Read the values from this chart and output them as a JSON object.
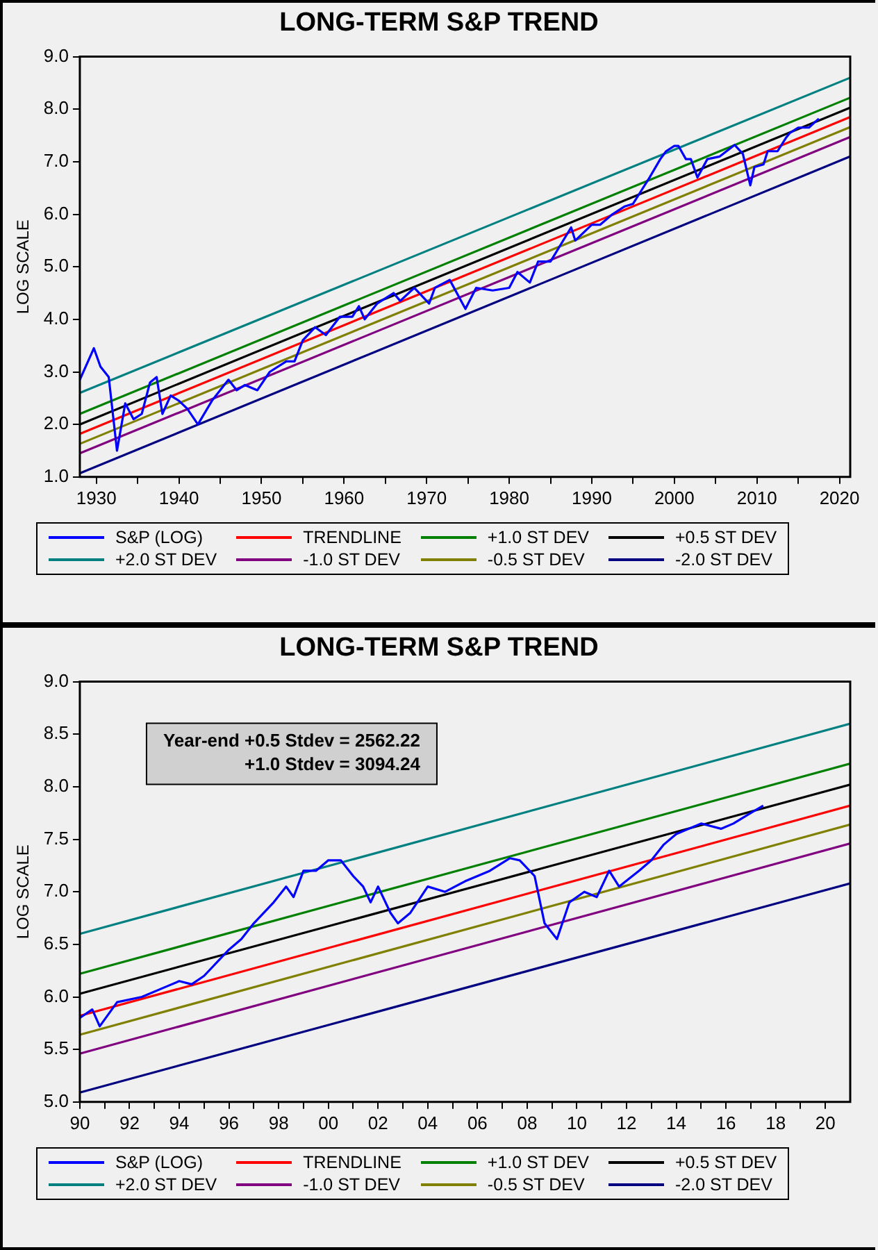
{
  "chart_data": [
    {
      "type": "line",
      "title": "LONG-TERM S&P TREND",
      "ylabel": "LOG SCALE",
      "xlim": [
        1928,
        2021.3
      ],
      "xticks": [
        1930,
        {
          "value": 1935,
          "label": null
        },
        1940,
        {
          "value": 1945,
          "label": null
        },
        1950,
        {
          "value": 1955,
          "label": null
        },
        1960,
        {
          "value": 1965,
          "label": null
        },
        1970,
        {
          "value": 1975,
          "label": null
        },
        1980,
        {
          "value": 1985,
          "label": null
        },
        1990,
        {
          "value": 1995,
          "label": null
        },
        2000,
        {
          "value": 2005,
          "label": null
        },
        2010,
        {
          "value": 2015,
          "label": null
        },
        2020
      ],
      "ylim": [
        1,
        9
      ],
      "yticks": [
        {
          "value": 1,
          "label": "1.0"
        },
        {
          "value": 2,
          "label": "2.0"
        },
        {
          "value": 3,
          "label": "3.0"
        },
        {
          "value": 4,
          "label": "4.0"
        },
        {
          "value": 5,
          "label": "5.0"
        },
        {
          "value": 6,
          "label": "6.0"
        },
        {
          "value": 7,
          "label": "7.0"
        },
        {
          "value": 8,
          "label": "8.0"
        },
        {
          "value": 9,
          "label": "9.0"
        }
      ],
      "grid": false,
      "legend": "bottom",
      "marker": "none",
      "series": [
        {
          "name": "S&P (LOG)",
          "color": "#0000ff",
          "x": [
            1928,
            1929.7,
            1930.5,
            1931.5,
            1932.5,
            1933.5,
            1934.5,
            1935.5,
            1936.5,
            1937.3,
            1938,
            1939,
            1940,
            1941,
            1942.3,
            1944,
            1946,
            1947,
            1948,
            1949.5,
            1951,
            1953,
            1954,
            1955,
            1956.5,
            1957.8,
            1959.5,
            1961,
            1961.8,
            1962.5,
            1964,
            1966,
            1966.8,
            1968.5,
            1970.3,
            1971,
            1972.8,
            1974.7,
            1976,
            1978,
            1980,
            1981,
            1982.5,
            1983.5,
            1985,
            1987.5,
            1988,
            1990,
            1991,
            1992.5,
            1994,
            1995,
            1996,
            1997,
            1998.3,
            1999,
            2000,
            2000.5,
            2001.4,
            2002,
            2002.8,
            2004,
            2005.5,
            2007.3,
            2008.3,
            2009.2,
            2009.7,
            2010.8,
            2011.3,
            2012.5,
            2013.5,
            2014,
            2015,
            2016.3,
            2017,
            2017.5
          ],
          "values": [
            2.85,
            3.45,
            3.1,
            2.9,
            1.5,
            2.4,
            2.1,
            2.2,
            2.8,
            2.9,
            2.2,
            2.55,
            2.45,
            2.3,
            2.0,
            2.45,
            2.85,
            2.65,
            2.75,
            2.65,
            3.0,
            3.2,
            3.2,
            3.6,
            3.85,
            3.7,
            4.05,
            4.05,
            4.25,
            4.0,
            4.3,
            4.5,
            4.35,
            4.6,
            4.3,
            4.6,
            4.75,
            4.2,
            4.6,
            4.55,
            4.6,
            4.9,
            4.7,
            5.1,
            5.1,
            5.75,
            5.5,
            5.8,
            5.8,
            6.0,
            6.15,
            6.2,
            6.45,
            6.7,
            7.05,
            7.2,
            7.3,
            7.3,
            7.05,
            7.05,
            6.7,
            7.05,
            7.1,
            7.32,
            7.15,
            6.55,
            6.9,
            6.95,
            7.2,
            7.2,
            7.45,
            7.55,
            7.65,
            7.65,
            7.75,
            7.82
          ]
        },
        {
          "name": "TRENDLINE",
          "color": "#ff0000",
          "x": [
            1928,
            2021.3
          ],
          "values": [
            1.82,
            7.85
          ]
        },
        {
          "name": "+1.0 ST DEV",
          "color": "#008000",
          "x": [
            1928,
            2021.3
          ],
          "values": [
            2.2,
            8.22
          ]
        },
        {
          "name": "+0.5 ST DEV",
          "color": "#000000",
          "x": [
            1928,
            2021.3
          ],
          "values": [
            2.0,
            8.03
          ]
        },
        {
          "name": "+2.0 ST DEV",
          "color": "#008080",
          "x": [
            1928,
            2021.3
          ],
          "values": [
            2.6,
            8.6
          ]
        },
        {
          "name": "-1.0 ST DEV",
          "color": "#800080",
          "x": [
            1928,
            2021.3
          ],
          "values": [
            1.45,
            7.47
          ]
        },
        {
          "name": "-0.5 ST DEV",
          "color": "#808000",
          "x": [
            1928,
            2021.3
          ],
          "values": [
            1.63,
            7.66
          ]
        },
        {
          "name": "-2.0 ST DEV",
          "color": "#000080",
          "x": [
            1928,
            2021.3
          ],
          "values": [
            1.07,
            7.1
          ]
        }
      ]
    },
    {
      "type": "line",
      "title": "LONG-TERM S&P TREND",
      "ylabel": "LOG SCALE",
      "xlim": [
        1990,
        2021
      ],
      "xticks": [
        {
          "value": 1990,
          "label": "90"
        },
        {
          "value": 1991,
          "label": null
        },
        {
          "value": 1992,
          "label": "92"
        },
        {
          "value": 1993,
          "label": null
        },
        {
          "value": 1994,
          "label": "94"
        },
        {
          "value": 1995,
          "label": null
        },
        {
          "value": 1996,
          "label": "96"
        },
        {
          "value": 1997,
          "label": null
        },
        {
          "value": 1998,
          "label": "98"
        },
        {
          "value": 1999,
          "label": null
        },
        {
          "value": 2000,
          "label": "00"
        },
        {
          "value": 2001,
          "label": null
        },
        {
          "value": 2002,
          "label": "02"
        },
        {
          "value": 2003,
          "label": null
        },
        {
          "value": 2004,
          "label": "04"
        },
        {
          "value": 2005,
          "label": null
        },
        {
          "value": 2006,
          "label": "06"
        },
        {
          "value": 2007,
          "label": null
        },
        {
          "value": 2008,
          "label": "08"
        },
        {
          "value": 2009,
          "label": null
        },
        {
          "value": 2010,
          "label": "10"
        },
        {
          "value": 2011,
          "label": null
        },
        {
          "value": 2012,
          "label": "12"
        },
        {
          "value": 2013,
          "label": null
        },
        {
          "value": 2014,
          "label": "14"
        },
        {
          "value": 2015,
          "label": null
        },
        {
          "value": 2016,
          "label": "16"
        },
        {
          "value": 2017,
          "label": null
        },
        {
          "value": 2018,
          "label": "18"
        },
        {
          "value": 2019,
          "label": null
        },
        {
          "value": 2020,
          "label": "20"
        }
      ],
      "ylim": [
        5,
        9
      ],
      "yticks": [
        {
          "value": 5,
          "label": "5.0"
        },
        5.5,
        {
          "value": 6,
          "label": "6.0"
        },
        6.5,
        {
          "value": 7,
          "label": "7.0"
        },
        7.5,
        {
          "value": 8,
          "label": "8.0"
        },
        8.5,
        {
          "value": 9,
          "label": "9.0"
        }
      ],
      "grid": false,
      "legend": "bottom",
      "marker": "none",
      "annotations": [
        "Year-end +0.5 Stdev = 2562.22",
        "+1.0 Stdev = 3094.24"
      ],
      "series": [
        {
          "name": "S&P (LOG)",
          "color": "#0000ff",
          "x": [
            1990,
            1990.5,
            1990.8,
            1991.5,
            1992.5,
            1993.5,
            1994,
            1994.5,
            1995,
            1996,
            1996.5,
            1997,
            1997.8,
            1998.3,
            1998.6,
            1999,
            1999.5,
            2000,
            2000.5,
            2001,
            2001.4,
            2001.7,
            2002,
            2002.5,
            2002.8,
            2003.3,
            2004,
            2004.7,
            2005.5,
            2006.5,
            2007.3,
            2007.7,
            2008.3,
            2008.7,
            2009.2,
            2009.7,
            2010.3,
            2010.8,
            2011.3,
            2011.7,
            2012.5,
            2013,
            2013.5,
            2014,
            2015,
            2015.8,
            2016.3,
            2017,
            2017.5
          ],
          "values": [
            5.8,
            5.88,
            5.72,
            5.95,
            6.0,
            6.1,
            6.15,
            6.12,
            6.2,
            6.45,
            6.55,
            6.7,
            6.9,
            7.05,
            6.95,
            7.2,
            7.2,
            7.3,
            7.3,
            7.15,
            7.05,
            6.9,
            7.05,
            6.8,
            6.7,
            6.8,
            7.05,
            7.0,
            7.1,
            7.2,
            7.32,
            7.3,
            7.15,
            6.7,
            6.55,
            6.9,
            7.0,
            6.95,
            7.2,
            7.05,
            7.2,
            7.3,
            7.45,
            7.55,
            7.65,
            7.6,
            7.65,
            7.75,
            7.82
          ]
        },
        {
          "name": "TRENDLINE",
          "color": "#ff0000",
          "x": [
            1990,
            2021
          ],
          "values": [
            5.82,
            7.82
          ]
        },
        {
          "name": "+1.0 ST DEV",
          "color": "#008000",
          "x": [
            1990,
            2021
          ],
          "values": [
            6.22,
            8.22
          ]
        },
        {
          "name": "+0.5 ST DEV",
          "color": "#000000",
          "x": [
            1990,
            2021
          ],
          "values": [
            6.03,
            8.02
          ]
        },
        {
          "name": "+2.0 ST DEV",
          "color": "#008080",
          "x": [
            1990,
            2021
          ],
          "values": [
            6.6,
            8.6
          ]
        },
        {
          "name": "-1.0 ST DEV",
          "color": "#800080",
          "x": [
            1990,
            2021
          ],
          "values": [
            5.46,
            7.46
          ]
        },
        {
          "name": "-0.5 ST DEV",
          "color": "#808000",
          "x": [
            1990,
            2021
          ],
          "values": [
            5.64,
            7.64
          ]
        },
        {
          "name": "-2.0 ST DEV",
          "color": "#000080",
          "x": [
            1990,
            2021
          ],
          "values": [
            5.09,
            7.08
          ]
        }
      ]
    }
  ]
}
